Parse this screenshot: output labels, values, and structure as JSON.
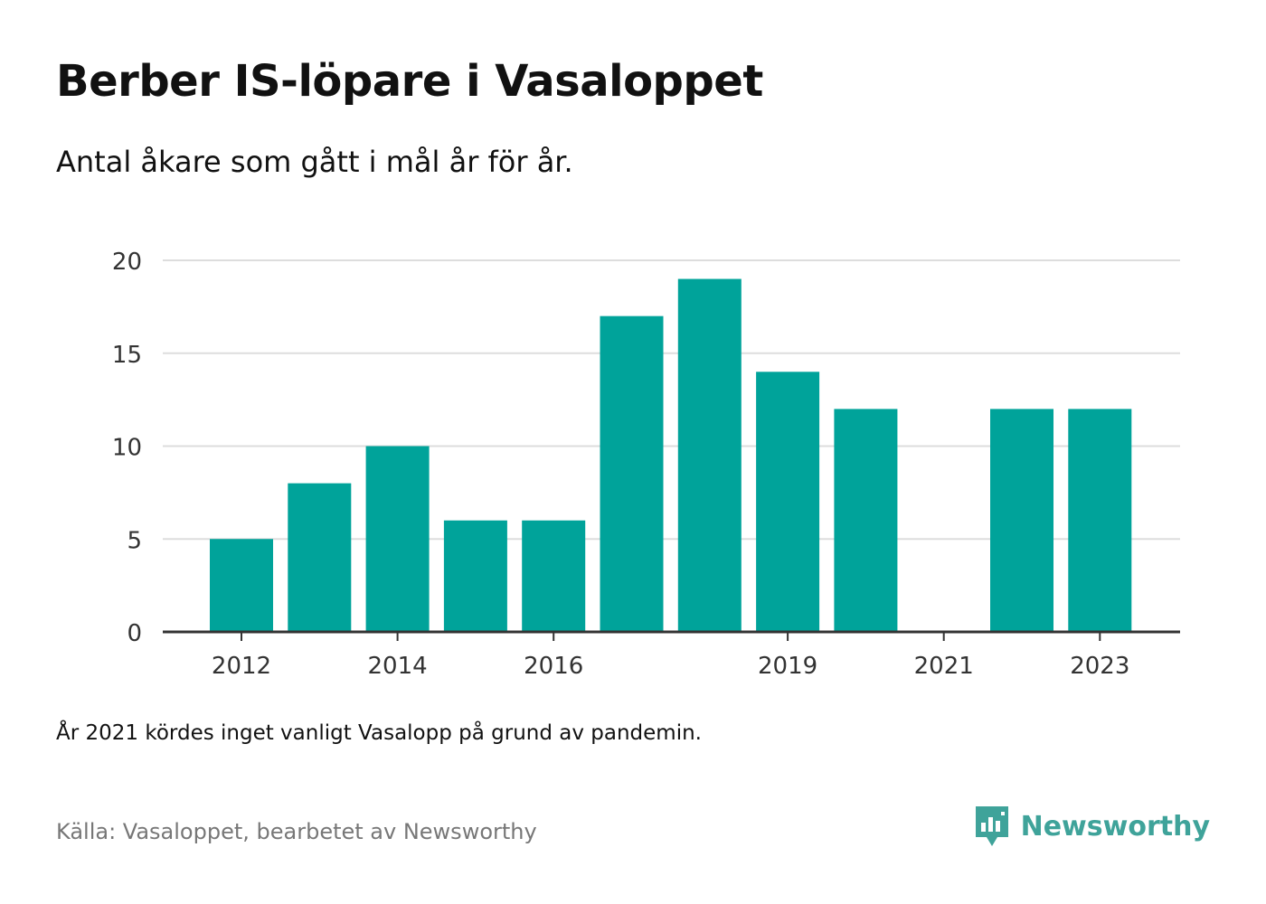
{
  "title": "Berber IS-löpare i Vasaloppet",
  "subtitle": "Antal åkare som gått i mål år för år.",
  "note": "År 2021 kördes inget vanligt Vasalopp på grund av pandemin.",
  "source": "Källa: Vasaloppet, bearbetet av Newsworthy",
  "brand": {
    "name": "Newsworthy",
    "color": "#3fa39a",
    "icon": "newsworthy-logo-icon"
  },
  "colors": {
    "bar": "#00a39a",
    "grid": "#dddddd",
    "axis": "#333333"
  },
  "chart_data": {
    "type": "bar",
    "categories": [
      "2012",
      "2013",
      "2014",
      "2015",
      "2016",
      "2017",
      "2018",
      "2019",
      "2020",
      "2021",
      "2022",
      "2023"
    ],
    "values": [
      5,
      8,
      10,
      6,
      6,
      17,
      19,
      14,
      12,
      null,
      12,
      12
    ],
    "x_tick_labels": [
      "2012",
      "2014",
      "2016",
      "2019",
      "2021",
      "2023"
    ],
    "y_ticks": [
      0,
      5,
      10,
      15,
      20
    ],
    "ylim": [
      0,
      20
    ],
    "xlabel": "",
    "ylabel": "",
    "grid": true,
    "legend": "none"
  }
}
